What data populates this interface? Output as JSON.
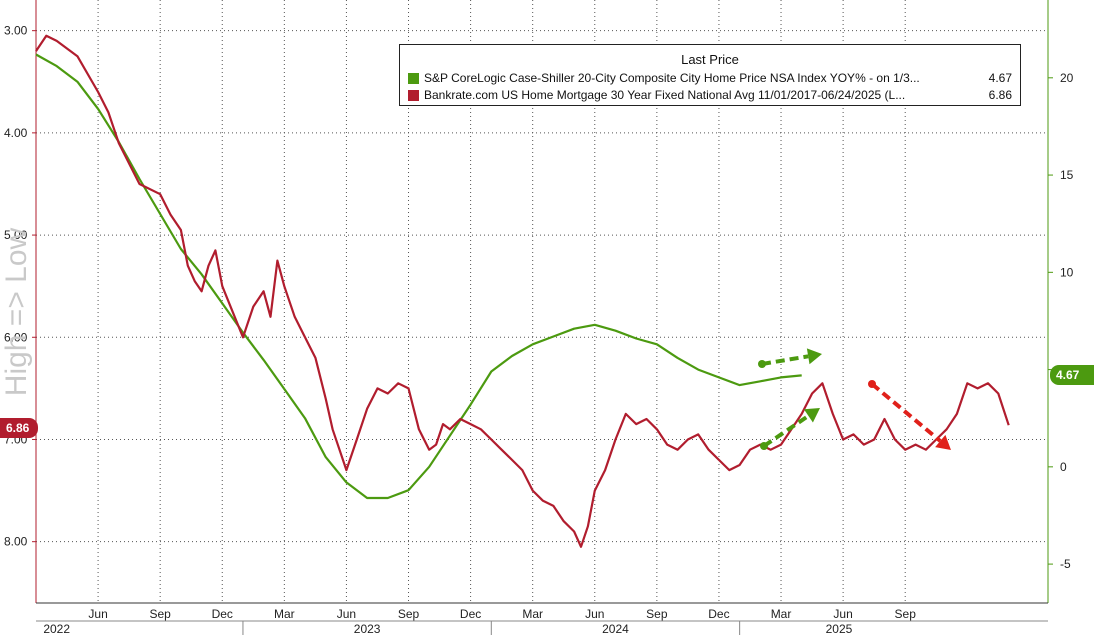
{
  "chart_data": {
    "type": "line",
    "title": "",
    "legend": {
      "title": "Last Price",
      "placement": "top-right",
      "entries": [
        {
          "name": "S&P CoreLogic Case-Shiller 20-City Composite City Home Price NSA Index YOY% -   on 1/3...",
          "value": "4.67",
          "color": "#4c9a10"
        },
        {
          "name": "Bankrate.com US Home Mortgage 30 Year Fixed National Avg 11/01/2017-06/24/2025    (L...",
          "value": "6.86",
          "color": "#b11d2e"
        }
      ]
    },
    "side_label": "High => Low",
    "left_axis": {
      "label": "",
      "inverted": true,
      "range": [
        2.7,
        8.6
      ],
      "ticks": [
        3.0,
        4.0,
        5.0,
        6.0,
        7.0,
        8.0
      ],
      "tick_labels": [
        "3.00",
        "4.00",
        "5.00",
        "6.00",
        "7.00",
        "8.00"
      ],
      "last_value_tag": "6.86"
    },
    "right_axis": {
      "label": "",
      "range": [
        -7,
        24
      ],
      "ticks": [
        20,
        15,
        10,
        5,
        0,
        -5
      ],
      "tick_labels": [
        "20",
        "15",
        "10",
        "5",
        "0",
        "-5"
      ],
      "last_value_tag": "4.67"
    },
    "x_axis": {
      "month_labels": [
        "Jun",
        "Sep",
        "Dec",
        "Mar",
        "Jun",
        "Sep",
        "Dec",
        "Mar",
        "Jun",
        "Sep",
        "Dec",
        "Mar",
        "Jun",
        "Sep"
      ],
      "year_labels": [
        "2022",
        "2023",
        "2024",
        "2025"
      ]
    },
    "grid": true,
    "series": [
      {
        "name": "S&P CoreLogic Case-Shiller 20-City Composite City Home Price NSA Index YOY%",
        "axis": "right",
        "color": "#4c9a10",
        "points": [
          [
            "2022-03",
            21.2
          ],
          [
            "2022-04",
            20.6
          ],
          [
            "2022-05",
            19.8
          ],
          [
            "2022-06",
            18.4
          ],
          [
            "2022-07",
            16.7
          ],
          [
            "2022-08",
            14.8
          ],
          [
            "2022-09",
            13.0
          ],
          [
            "2022-10",
            11.2
          ],
          [
            "2022-11",
            9.9
          ],
          [
            "2022-12",
            8.4
          ],
          [
            "2023-01",
            6.9
          ],
          [
            "2023-02",
            5.5
          ],
          [
            "2023-03",
            4.0
          ],
          [
            "2023-04",
            2.5
          ],
          [
            "2023-05",
            0.5
          ],
          [
            "2023-06",
            -0.8
          ],
          [
            "2023-07",
            -1.6
          ],
          [
            "2023-08",
            -1.6
          ],
          [
            "2023-09",
            -1.2
          ],
          [
            "2023-10",
            0.0
          ],
          [
            "2023-11",
            1.6
          ],
          [
            "2023-12",
            3.2
          ],
          [
            "2024-01",
            4.9
          ],
          [
            "2024-02",
            5.7
          ],
          [
            "2024-03",
            6.3
          ],
          [
            "2024-04",
            6.7
          ],
          [
            "2024-05",
            7.1
          ],
          [
            "2024-06",
            7.3
          ],
          [
            "2024-07",
            7.0
          ],
          [
            "2024-08",
            6.6
          ],
          [
            "2024-09",
            6.3
          ],
          [
            "2024-10",
            5.6
          ],
          [
            "2024-11",
            5.0
          ],
          [
            "2024-12",
            4.6
          ],
          [
            "2025-01",
            4.2
          ],
          [
            "2025-02",
            4.4
          ],
          [
            "2025-03",
            4.6
          ],
          [
            "2025-04",
            4.7
          ]
        ]
      },
      {
        "name": "Bankrate.com US Home Mortgage 30 Year Fixed National Avg",
        "axis": "left",
        "color": "#b11d2e",
        "points": [
          [
            "2022-03",
            3.2
          ],
          [
            "2022-03",
            3.05
          ],
          [
            "2022-04",
            3.1
          ],
          [
            "2022-05",
            3.25
          ],
          [
            "2022-06",
            3.6
          ],
          [
            "2022-06",
            3.8
          ],
          [
            "2022-07",
            4.1
          ],
          [
            "2022-07",
            4.3
          ],
          [
            "2022-08",
            4.5
          ],
          [
            "2022-09",
            4.6
          ],
          [
            "2022-09",
            4.8
          ],
          [
            "2022-10",
            4.95
          ],
          [
            "2022-10",
            5.3
          ],
          [
            "2022-10",
            5.45
          ],
          [
            "2022-11",
            5.55
          ],
          [
            "2022-11",
            5.3
          ],
          [
            "2022-11",
            5.15
          ],
          [
            "2022-12",
            5.5
          ],
          [
            "2022-12",
            5.75
          ],
          [
            "2023-01",
            6.0
          ],
          [
            "2023-01",
            5.7
          ],
          [
            "2023-02",
            5.55
          ],
          [
            "2023-02",
            5.8
          ],
          [
            "2023-02",
            5.25
          ],
          [
            "2023-03",
            5.5
          ],
          [
            "2023-03",
            5.8
          ],
          [
            "2023-04",
            6.0
          ],
          [
            "2023-04",
            6.2
          ],
          [
            "2023-05",
            6.6
          ],
          [
            "2023-05",
            6.9
          ],
          [
            "2023-05",
            7.1
          ],
          [
            "2023-06",
            7.3
          ],
          [
            "2023-06",
            7.0
          ],
          [
            "2023-07",
            6.7
          ],
          [
            "2023-07",
            6.5
          ],
          [
            "2023-08",
            6.55
          ],
          [
            "2023-08",
            6.45
          ],
          [
            "2023-09",
            6.5
          ],
          [
            "2023-09",
            6.9
          ],
          [
            "2023-10",
            7.1
          ],
          [
            "2023-10",
            7.05
          ],
          [
            "2023-10",
            6.85
          ],
          [
            "2023-11",
            6.9
          ],
          [
            "2023-11",
            6.8
          ],
          [
            "2023-12",
            6.85
          ],
          [
            "2023-12",
            6.9
          ],
          [
            "2024-01",
            7.0
          ],
          [
            "2024-01",
            7.1
          ],
          [
            "2024-02",
            7.2
          ],
          [
            "2024-02",
            7.3
          ],
          [
            "2024-03",
            7.5
          ],
          [
            "2024-03",
            7.6
          ],
          [
            "2024-04",
            7.65
          ],
          [
            "2024-04",
            7.8
          ],
          [
            "2024-05",
            7.9
          ],
          [
            "2024-05",
            8.05
          ],
          [
            "2024-05",
            7.85
          ],
          [
            "2024-06",
            7.5
          ],
          [
            "2024-06",
            7.3
          ],
          [
            "2024-07",
            7.0
          ],
          [
            "2024-07",
            6.75
          ],
          [
            "2024-08",
            6.85
          ],
          [
            "2024-08",
            6.8
          ],
          [
            "2024-09",
            6.9
          ],
          [
            "2024-09",
            7.05
          ],
          [
            "2024-10",
            7.1
          ],
          [
            "2024-10",
            7.0
          ],
          [
            "2024-11",
            6.95
          ],
          [
            "2024-11",
            7.1
          ],
          [
            "2024-12",
            7.2
          ],
          [
            "2024-12",
            7.3
          ],
          [
            "2025-01",
            7.25
          ],
          [
            "2025-01",
            7.1
          ],
          [
            "2025-02",
            7.05
          ],
          [
            "2025-02",
            7.1
          ],
          [
            "2025-03",
            7.05
          ],
          [
            "2025-03",
            6.9
          ],
          [
            "2025-04",
            6.75
          ],
          [
            "2025-04",
            6.55
          ],
          [
            "2025-05",
            6.45
          ],
          [
            "2025-05",
            6.75
          ],
          [
            "2025-06",
            7.0
          ],
          [
            "2025-06",
            6.95
          ],
          [
            "2025-07",
            7.05
          ],
          [
            "2025-07",
            7.0
          ],
          [
            "2025-08",
            6.8
          ],
          [
            "2025-08",
            7.0
          ],
          [
            "2025-09",
            7.1
          ],
          [
            "2025-09",
            7.05
          ],
          [
            "2025-10",
            7.1
          ],
          [
            "2025-10",
            7.0
          ],
          [
            "2025-11",
            6.9
          ],
          [
            "2025-11",
            6.75
          ],
          [
            "2025-12",
            6.45
          ],
          [
            "2025-12",
            6.5
          ],
          [
            "2026-01",
            6.45
          ],
          [
            "2026-01",
            6.55
          ],
          [
            "2026-02",
            6.86
          ]
        ]
      }
    ],
    "annotations": [
      {
        "type": "arrow",
        "style": "dashed",
        "color": "#4c9a10",
        "meaning": "home prices flat"
      },
      {
        "type": "arrow",
        "style": "dashed",
        "color": "#4c9a10",
        "meaning": "home prices up"
      },
      {
        "type": "arrow",
        "style": "dashed",
        "color": "#e0201a",
        "meaning": "rates down"
      }
    ]
  }
}
